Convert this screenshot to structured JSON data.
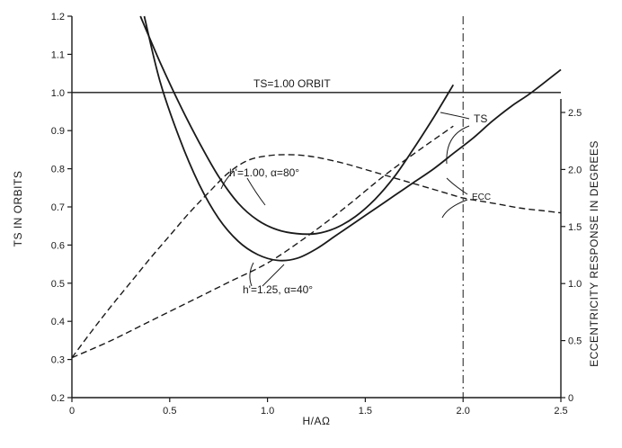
{
  "colors": {
    "ink": "#1a1a1a",
    "background": "#ffffff"
  },
  "chart_data": {
    "type": "line",
    "title": "",
    "xlabel": "H/AΩ",
    "ylabel": "TS IN ORBITS",
    "y2label": "ECCENTRICITY RESPONSE IN DEGREES",
    "xlim": [
      0,
      2.5
    ],
    "ylim": [
      0.2,
      1.2
    ],
    "y2lim": [
      0,
      2.5
    ],
    "grid": false,
    "x_ticks": [
      "0",
      "0.5",
      "1.0",
      "1.5",
      "2.0",
      "2.5"
    ],
    "y_ticks": [
      "0.2",
      "0.3",
      "0.4",
      "0.5",
      "0.6",
      "0.7",
      "0.8",
      "0.9",
      "1.0",
      "1.1",
      "1.2"
    ],
    "y2_ticks": [
      "0",
      "0.5",
      "1.0",
      "1.5",
      "2.0",
      "2.5"
    ],
    "reference_lines": [
      {
        "axis": "y",
        "value": 1.0,
        "label": "TS=1.00 ORBIT"
      },
      {
        "axis": "x",
        "value": 2.0,
        "label": ""
      }
    ],
    "series": [
      {
        "name": "h'=1.00, α=80°",
        "kind": "TS",
        "axis": "left",
        "style": "solid",
        "x": [
          0.35,
          0.45,
          0.55,
          0.65,
          0.75,
          0.85,
          0.95,
          1.05,
          1.15,
          1.25,
          1.35,
          1.45,
          1.55,
          1.65,
          1.75,
          1.85,
          1.95
        ],
        "y": [
          1.2,
          1.08,
          0.97,
          0.87,
          0.78,
          0.71,
          0.665,
          0.64,
          0.63,
          0.63,
          0.645,
          0.675,
          0.72,
          0.78,
          0.855,
          0.935,
          1.02
        ]
      },
      {
        "name": "h'=1.25, α=40°",
        "kind": "TS",
        "axis": "left",
        "style": "solid",
        "x": [
          0.37,
          0.45,
          0.55,
          0.65,
          0.75,
          0.85,
          0.95,
          1.05,
          1.15,
          1.25,
          1.35,
          1.45,
          1.55,
          1.65,
          1.75,
          1.85,
          1.95,
          2.05,
          2.15,
          2.25,
          2.35,
          2.5
        ],
        "y": [
          1.2,
          1.03,
          0.88,
          0.76,
          0.67,
          0.61,
          0.575,
          0.56,
          0.565,
          0.59,
          0.625,
          0.66,
          0.695,
          0.73,
          0.765,
          0.8,
          0.84,
          0.88,
          0.925,
          0.965,
          1.0,
          1.06
        ]
      },
      {
        "name": "ECC h'=1.00, α=80°",
        "kind": "ECC",
        "axis": "right",
        "style": "dashed",
        "x": [
          0,
          0.1,
          0.2,
          0.3,
          0.4,
          0.5,
          0.6,
          0.7,
          0.8,
          0.9,
          1.0,
          1.1,
          1.2,
          1.3,
          1.4,
          1.5,
          1.6,
          1.7,
          1.8,
          1.9,
          2.0,
          2.1,
          2.2,
          2.3,
          2.4,
          2.5
        ],
        "y": [
          0.35,
          0.58,
          0.8,
          1.01,
          1.22,
          1.42,
          1.62,
          1.8,
          1.97,
          2.08,
          2.12,
          2.13,
          2.12,
          2.09,
          2.05,
          2.0,
          1.95,
          1.9,
          1.85,
          1.8,
          1.75,
          1.72,
          1.69,
          1.66,
          1.64,
          1.62
        ]
      },
      {
        "name": "ECC h'=1.25, α=40°",
        "kind": "ECC",
        "axis": "right",
        "style": "dashed",
        "x": [
          0,
          0.2,
          0.4,
          0.6,
          0.8,
          1.0,
          1.2,
          1.4,
          1.6,
          1.8,
          1.95
        ],
        "y": [
          0.35,
          0.5,
          0.67,
          0.84,
          1.01,
          1.18,
          1.41,
          1.67,
          1.95,
          2.2,
          2.38
        ]
      }
    ],
    "annotations": {
      "ts_reference_label": "TS=1.00 ORBIT",
      "ts_curve_label": "TS",
      "ecc_curve_label": "ECC",
      "curve_a_label": "h'=1.00, α=80°",
      "curve_b_label": "h'=1.25, α=40°"
    }
  }
}
